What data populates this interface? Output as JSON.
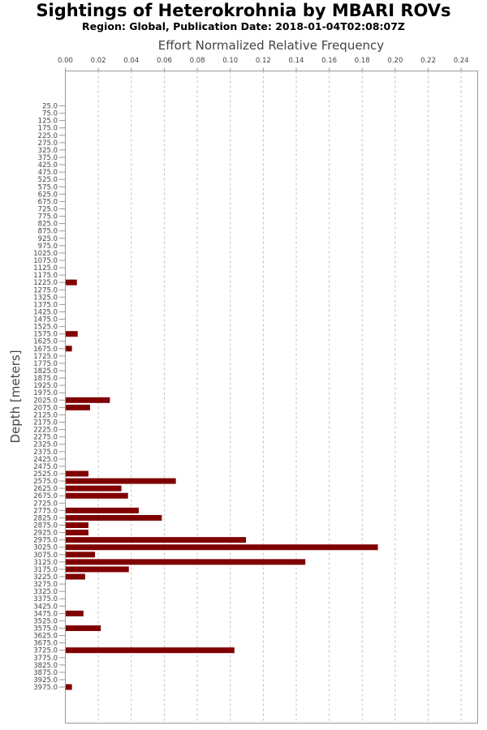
{
  "chart_data": {
    "type": "bar",
    "orientation": "horizontal",
    "title": "Sightings of Heterokrohnia by MBARI ROVs",
    "subtitle": "Region: Global, Publication Date: 2018-01-04T02:08:07Z",
    "xlabel": "Effort Normalized Relative Frequency",
    "ylabel": "Depth [meters]",
    "xlim": [
      0,
      0.25
    ],
    "xticks": [
      "0.00",
      "0.02",
      "0.04",
      "0.06",
      "0.08",
      "0.10",
      "0.12",
      "0.14",
      "0.16",
      "0.18",
      "0.20",
      "0.22",
      "0.24"
    ],
    "grid": "vertical dashed",
    "bar_color": "#800000",
    "categories": [
      "25.0",
      "75.0",
      "125.0",
      "175.0",
      "225.0",
      "275.0",
      "325.0",
      "375.0",
      "425.0",
      "475.0",
      "525.0",
      "575.0",
      "625.0",
      "675.0",
      "725.0",
      "775.0",
      "825.0",
      "875.0",
      "925.0",
      "975.0",
      "1025.0",
      "1075.0",
      "1125.0",
      "1175.0",
      "1225.0",
      "1275.0",
      "1325.0",
      "1375.0",
      "1425.0",
      "1475.0",
      "1525.0",
      "1575.0",
      "1625.0",
      "1675.0",
      "1725.0",
      "1775.0",
      "1825.0",
      "1875.0",
      "1925.0",
      "1975.0",
      "2025.0",
      "2075.0",
      "2125.0",
      "2175.0",
      "2225.0",
      "2275.0",
      "2325.0",
      "2375.0",
      "2425.0",
      "2475.0",
      "2525.0",
      "2575.0",
      "2625.0",
      "2675.0",
      "2725.0",
      "2775.0",
      "2825.0",
      "2875.0",
      "2925.0",
      "2975.0",
      "3025.0",
      "3075.0",
      "3125.0",
      "3175.0",
      "3225.0",
      "3275.0",
      "3325.0",
      "3375.0",
      "3425.0",
      "3475.0",
      "3525.0",
      "3575.0",
      "3625.0",
      "3675.0",
      "3725.0",
      "3775.0",
      "3825.0",
      "3875.0",
      "3925.0",
      "3975.0"
    ],
    "values": [
      0,
      0,
      0,
      0,
      0,
      0,
      0,
      0,
      0,
      0,
      0,
      0,
      0,
      0,
      0,
      0,
      0,
      0,
      0,
      0,
      0,
      0,
      0,
      0,
      0.007,
      0,
      0,
      0,
      0,
      0,
      0,
      0.0075,
      0,
      0.004,
      0,
      0,
      0,
      0,
      0,
      0,
      0.027,
      0.015,
      0,
      0,
      0,
      0,
      0,
      0,
      0,
      0,
      0.014,
      0.067,
      0.034,
      0.038,
      0,
      0.0445,
      0.0585,
      0.014,
      0.014,
      0.1095,
      0.1895,
      0.018,
      0.1455,
      0.0385,
      0.012,
      0,
      0,
      0,
      0,
      0.011,
      0,
      0.0215,
      0,
      0,
      0.1025,
      0,
      0,
      0,
      0,
      0.004
    ]
  }
}
